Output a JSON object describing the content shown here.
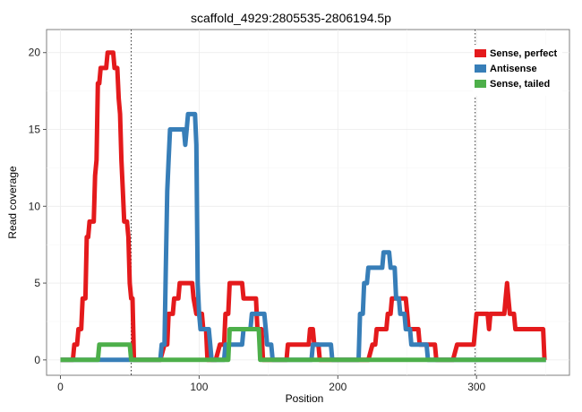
{
  "chart_data": {
    "type": "line",
    "title": "scaffold_4929:2805535-2806194.5p",
    "xlabel": "Position",
    "ylabel": "Read coverage",
    "xlim": [
      -10,
      367
    ],
    "ylim": [
      -1,
      21.5
    ],
    "xticks": [
      0,
      100,
      200,
      300
    ],
    "yticks": [
      0,
      5,
      10,
      15,
      20
    ],
    "xtick_labels": [
      "0",
      "100",
      "200",
      "300"
    ],
    "ytick_labels": [
      "0",
      "5",
      "10",
      "15",
      "20"
    ],
    "grid": true,
    "legend_position": "top-right",
    "vlines": [
      51,
      299
    ],
    "series": [
      {
        "name": "Sense, perfect",
        "color": "#E41A1C",
        "points": [
          [
            0,
            0
          ],
          [
            9,
            0
          ],
          [
            10,
            1
          ],
          [
            12,
            1
          ],
          [
            13,
            2
          ],
          [
            15,
            2
          ],
          [
            16,
            4
          ],
          [
            18,
            4
          ],
          [
            19,
            8
          ],
          [
            20,
            8
          ],
          [
            21,
            9
          ],
          [
            24,
            9
          ],
          [
            25,
            12
          ],
          [
            26,
            13
          ],
          [
            27,
            18
          ],
          [
            28,
            18
          ],
          [
            29,
            19
          ],
          [
            33,
            19
          ],
          [
            34,
            20
          ],
          [
            38,
            20
          ],
          [
            39,
            19
          ],
          [
            41,
            19
          ],
          [
            42,
            17
          ],
          [
            43,
            16
          ],
          [
            44,
            13
          ],
          [
            45,
            11
          ],
          [
            46,
            9
          ],
          [
            48,
            9
          ],
          [
            49,
            8
          ],
          [
            50,
            5
          ],
          [
            51,
            4
          ],
          [
            52,
            4
          ],
          [
            53,
            0
          ],
          [
            72,
            0
          ],
          [
            75,
            1
          ],
          [
            77,
            1
          ],
          [
            78,
            3
          ],
          [
            81,
            3
          ],
          [
            82,
            4
          ],
          [
            85,
            4
          ],
          [
            86,
            5
          ],
          [
            95,
            5
          ],
          [
            96,
            4
          ],
          [
            98,
            3
          ],
          [
            99,
            4
          ],
          [
            100,
            3
          ],
          [
            102,
            3
          ],
          [
            103,
            2
          ],
          [
            105,
            2
          ],
          [
            106,
            0
          ],
          [
            112,
            0
          ],
          [
            115,
            1
          ],
          [
            118,
            1
          ],
          [
            119,
            3
          ],
          [
            121,
            3
          ],
          [
            122,
            5
          ],
          [
            131,
            5
          ],
          [
            132,
            4
          ],
          [
            141,
            4
          ],
          [
            142,
            2
          ],
          [
            145,
            2
          ],
          [
            146,
            0
          ],
          [
            163,
            0
          ],
          [
            164,
            1
          ],
          [
            179,
            1
          ],
          [
            180,
            2
          ],
          [
            182,
            2
          ],
          [
            183,
            1
          ],
          [
            186,
            1
          ],
          [
            187,
            0
          ],
          [
            222,
            0
          ],
          [
            225,
            1
          ],
          [
            227,
            1
          ],
          [
            228,
            2
          ],
          [
            235,
            2
          ],
          [
            236,
            3
          ],
          [
            238,
            3
          ],
          [
            239,
            4
          ],
          [
            249,
            4
          ],
          [
            250,
            3
          ],
          [
            251,
            2
          ],
          [
            258,
            2
          ],
          [
            259,
            1
          ],
          [
            270,
            1
          ],
          [
            271,
            0
          ],
          [
            283,
            0
          ],
          [
            286,
            1
          ],
          [
            298,
            1
          ],
          [
            299,
            2
          ],
          [
            300,
            3
          ],
          [
            308,
            3
          ],
          [
            309,
            2
          ],
          [
            310,
            3
          ],
          [
            320,
            3
          ],
          [
            321,
            4
          ],
          [
            322,
            5
          ],
          [
            323,
            4
          ],
          [
            324,
            3
          ],
          [
            327,
            3
          ],
          [
            328,
            2
          ],
          [
            348,
            2
          ],
          [
            349,
            0
          ]
        ]
      },
      {
        "name": "Antisense",
        "color": "#377EB8",
        "points": [
          [
            0,
            0
          ],
          [
            72,
            0
          ],
          [
            73,
            1
          ],
          [
            75,
            1
          ],
          [
            76,
            6
          ],
          [
            77,
            11
          ],
          [
            78,
            13
          ],
          [
            79,
            15
          ],
          [
            89,
            15
          ],
          [
            90,
            14
          ],
          [
            91,
            15
          ],
          [
            92,
            16
          ],
          [
            97,
            16
          ],
          [
            98,
            14
          ],
          [
            99,
            5
          ],
          [
            100,
            3
          ],
          [
            101,
            2
          ],
          [
            107,
            2
          ],
          [
            108,
            1
          ],
          [
            109,
            0
          ],
          [
            118,
            0
          ],
          [
            119,
            1
          ],
          [
            131,
            1
          ],
          [
            132,
            2
          ],
          [
            137,
            2
          ],
          [
            138,
            3
          ],
          [
            147,
            3
          ],
          [
            148,
            2
          ],
          [
            149,
            1
          ],
          [
            152,
            1
          ],
          [
            153,
            0
          ],
          [
            181,
            0
          ],
          [
            182,
            1
          ],
          [
            195,
            1
          ],
          [
            196,
            0
          ],
          [
            215,
            0
          ],
          [
            216,
            3
          ],
          [
            218,
            3
          ],
          [
            219,
            5
          ],
          [
            221,
            5
          ],
          [
            222,
            6
          ],
          [
            232,
            6
          ],
          [
            233,
            7
          ],
          [
            237,
            7
          ],
          [
            238,
            6
          ],
          [
            241,
            6
          ],
          [
            242,
            4
          ],
          [
            244,
            4
          ],
          [
            245,
            3
          ],
          [
            248,
            3
          ],
          [
            249,
            2
          ],
          [
            252,
            2
          ],
          [
            253,
            1
          ],
          [
            264,
            1
          ],
          [
            265,
            0
          ],
          [
            350,
            0
          ]
        ]
      },
      {
        "name": "Sense, tailed",
        "color": "#4DAF4A",
        "points": [
          [
            0,
            0
          ],
          [
            27,
            0
          ],
          [
            28,
            1
          ],
          [
            50,
            1
          ],
          [
            51,
            0
          ],
          [
            121,
            0
          ],
          [
            122,
            2
          ],
          [
            143,
            2
          ],
          [
            144,
            0
          ],
          [
            350,
            0
          ]
        ]
      }
    ]
  }
}
